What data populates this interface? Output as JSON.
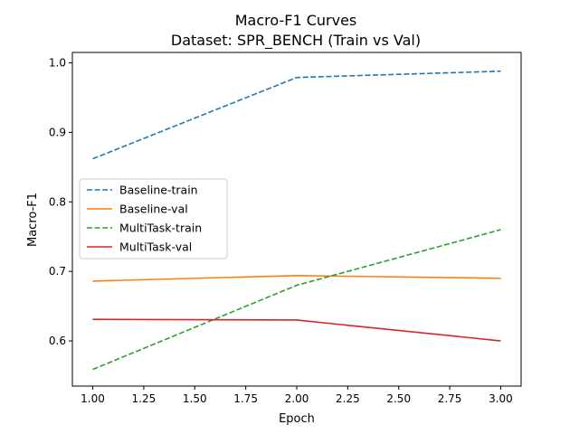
{
  "chart_data": {
    "type": "line",
    "title": "Macro-F1 Curves",
    "subtitle": "Dataset: SPR_BENCH (Train vs Val)",
    "xlabel": "Epoch",
    "ylabel": "Macro-F1",
    "x": [
      1.0,
      2.0,
      3.0
    ],
    "xlim": [
      0.9,
      3.1
    ],
    "ylim": [
      0.535,
      1.015
    ],
    "xticks": [
      1.0,
      1.25,
      1.5,
      1.75,
      2.0,
      2.25,
      2.5,
      2.75,
      3.0
    ],
    "xtick_labels": [
      "1.00",
      "1.25",
      "1.50",
      "1.75",
      "2.00",
      "2.25",
      "2.50",
      "2.75",
      "3.00"
    ],
    "yticks": [
      0.6,
      0.7,
      0.8,
      0.9,
      1.0
    ],
    "ytick_labels": [
      "0.6",
      "0.7",
      "0.8",
      "0.9",
      "1.0"
    ],
    "grid": false,
    "legend_position": "center-left",
    "series": [
      {
        "name": "Baseline-train",
        "values": [
          0.862,
          0.979,
          0.988
        ],
        "color": "#1f77b4",
        "dash": "dashed"
      },
      {
        "name": "Baseline-val",
        "values": [
          0.686,
          0.694,
          0.69
        ],
        "color": "#ff7f0e",
        "dash": "solid"
      },
      {
        "name": "MultiTask-train",
        "values": [
          0.559,
          0.68,
          0.76
        ],
        "color": "#2ca02c",
        "dash": "dashed"
      },
      {
        "name": "MultiTask-val",
        "values": [
          0.631,
          0.63,
          0.6
        ],
        "color": "#d62728",
        "dash": "solid"
      }
    ]
  }
}
